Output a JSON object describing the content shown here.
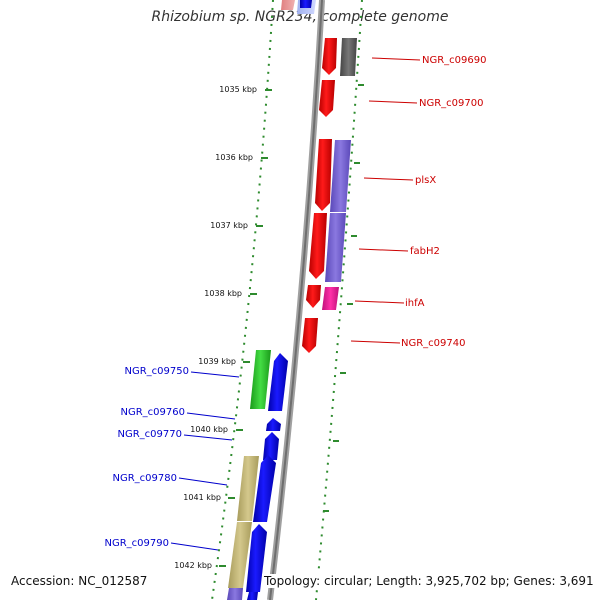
{
  "title": "Rhizobium sp. NGR234, complete genome",
  "footer": {
    "accession_label": "Accession:",
    "accession": "NC_012587",
    "topology_label": "Topology:",
    "topology": "circular",
    "length_label": "Length:",
    "length": "3,925,702 bp",
    "genes_label": "Genes:",
    "genes": "3,691"
  },
  "ticks": [
    "1035 kbp",
    "1036 kbp",
    "1037 kbp",
    "1038 kbp",
    "1039 kbp",
    "1040 kbp",
    "1041 kbp",
    "1042 kbp"
  ],
  "labels_right": [
    "NGR_c09690",
    "NGR_c09700",
    "plsX",
    "fabH2",
    "ihfA",
    "NGR_c09740"
  ],
  "labels_left": [
    "NGR_c09750",
    "NGR_c09760",
    "NGR_c09770",
    "NGR_c09780",
    "NGR_c09790"
  ],
  "colors": {
    "backbone": "#909090",
    "reverse_strand_gene": "#ff0000",
    "forward_strand_gene": "#0000ff",
    "gc_track": "#2e8b2e",
    "label_right": "#cc0000",
    "label_left": "#0000cc"
  }
}
